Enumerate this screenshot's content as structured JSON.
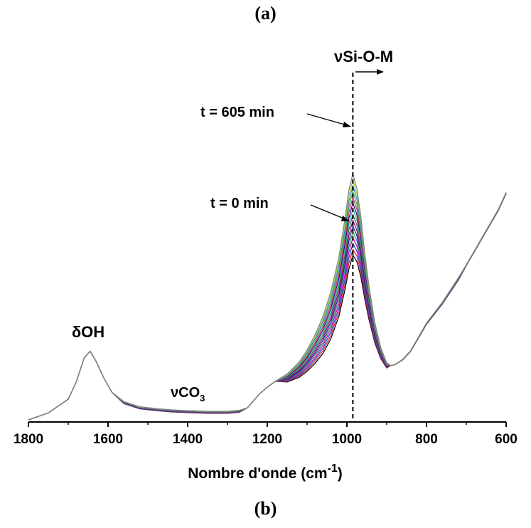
{
  "panel_top": "(a)",
  "panel_bottom": "(b)",
  "chart_data": {
    "type": "line",
    "xlabel": "Nombre d'onde (cm",
    "xlabel_sup": "-1",
    "xlim": [
      1800,
      600
    ],
    "x_reversed": true,
    "xticks": [
      "1800",
      "1600",
      "1400",
      "1200",
      "1000",
      "800",
      "600"
    ],
    "y_axis_shown": false,
    "grid": false,
    "annotations": {
      "delta_oh": "δOH",
      "nu_co3": "νCO",
      "nu_co3_sub": "3",
      "nu_sio": "νSi-O-M",
      "t_end": "t = 605 min",
      "t_start": "t = 0 min"
    },
    "peak_marker_x": 985,
    "x": [
      1800,
      1750,
      1700,
      1680,
      1660,
      1645,
      1630,
      1610,
      1590,
      1560,
      1520,
      1480,
      1440,
      1400,
      1350,
      1300,
      1270,
      1250,
      1220,
      1200,
      1180,
      1150,
      1120,
      1100,
      1080,
      1060,
      1040,
      1020,
      1005,
      995,
      985,
      975,
      965,
      955,
      945,
      930,
      915,
      900,
      890,
      880,
      860,
      840,
      820,
      800,
      780,
      760,
      740,
      720,
      700,
      680,
      660,
      640,
      620,
      600
    ],
    "series_shape": [
      0.0,
      0.02,
      0.06,
      0.11,
      0.18,
      0.2,
      0.17,
      0.12,
      0.08,
      0.05,
      0.035,
      0.03,
      0.026,
      0.024,
      0.022,
      0.022,
      0.025,
      0.035,
      0.075,
      0.095,
      0.112,
      0.14,
      0.18,
      0.22,
      0.27,
      0.33,
      0.41,
      0.52,
      0.64,
      0.73,
      0.78,
      0.73,
      0.64,
      0.52,
      0.42,
      0.3,
      0.22,
      0.17,
      0.158,
      0.16,
      0.175,
      0.2,
      0.24,
      0.28,
      0.31,
      0.34,
      0.375,
      0.41,
      0.45,
      0.49,
      0.53,
      0.57,
      0.61,
      0.66
    ],
    "peak_height_range": [
      0.45,
      0.71
    ],
    "series_count": 15,
    "series_colors": [
      "#000000",
      "#d62020",
      "#2040d0",
      "#c000c0",
      "#2e8b57",
      "#1a1a8c",
      "#8b008b",
      "#556b2f",
      "#20b2aa",
      "#4b0082",
      "#cc3366",
      "#3cb371",
      "#4682b4",
      "#9acd32",
      "#808080"
    ]
  }
}
